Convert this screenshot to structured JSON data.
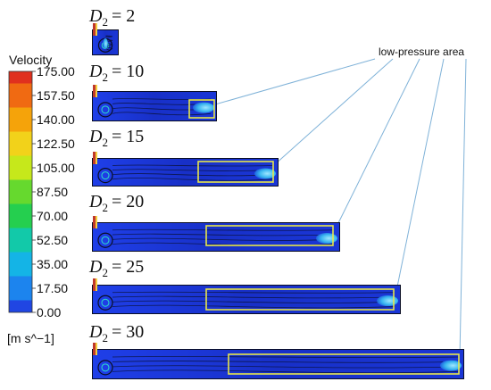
{
  "legend": {
    "title": "Velocity",
    "unit": "[m s^−1]",
    "ticks": [
      "175.00",
      "157.50",
      "140.00",
      "122.50",
      "105.00",
      "87.50",
      "70.00",
      "52.50",
      "35.00",
      "17.50",
      "0.00"
    ],
    "colors": [
      "#e0301e",
      "#f06a12",
      "#f5a30a",
      "#f2d21a",
      "#c6e81b",
      "#66d92e",
      "#25cf4f",
      "#12c9a9",
      "#14b4e6",
      "#1c84ee",
      "#2046e3"
    ]
  },
  "annotation": {
    "label": "low-pressure area"
  },
  "panels": [
    {
      "symbol": "D",
      "subscript": "2",
      "value": "= 2"
    },
    {
      "symbol": "D",
      "subscript": "2",
      "value": "= 10"
    },
    {
      "symbol": "D",
      "subscript": "2",
      "value": "= 15"
    },
    {
      "symbol": "D",
      "subscript": "2",
      "value": "= 20"
    },
    {
      "symbol": "D",
      "subscript": "2",
      "value": "= 25"
    },
    {
      "symbol": "D",
      "subscript": "2",
      "value": "= 30"
    }
  ],
  "colors": {
    "flow_field": "#1b2fd0",
    "flow_dark": "#0a0e24",
    "highlight_box": "#e8e64a",
    "pointer_line": "#7fb2d8",
    "pipe_wall": "#c0392b"
  }
}
